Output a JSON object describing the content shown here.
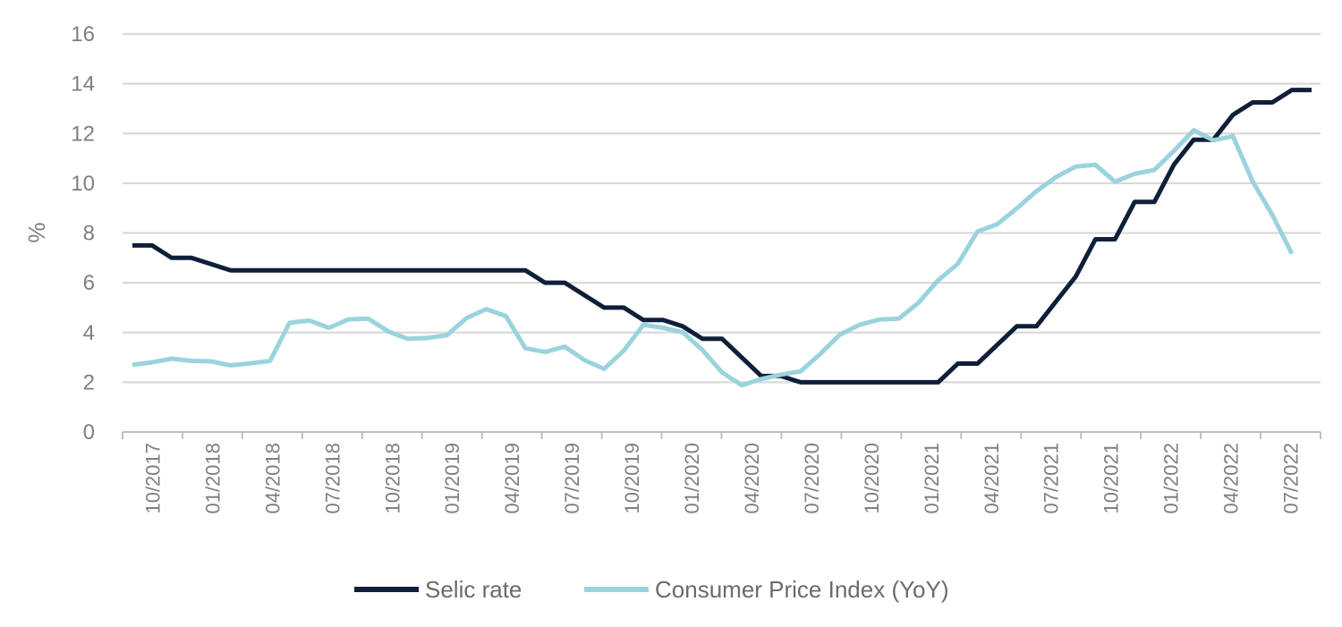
{
  "chart_data": {
    "type": "line",
    "title": "",
    "xlabel": "",
    "ylabel": "%",
    "ylim": [
      0,
      16
    ],
    "yticks": [
      "0",
      "2",
      "4",
      "6",
      "8",
      "10",
      "12",
      "14",
      "16"
    ],
    "grid": true,
    "legend_position": "bottom",
    "x": [
      "10/2017",
      "11/2017",
      "12/2017",
      "01/2018",
      "02/2018",
      "03/2018",
      "04/2018",
      "05/2018",
      "06/2018",
      "07/2018",
      "08/2018",
      "09/2018",
      "10/2018",
      "11/2018",
      "12/2018",
      "01/2019",
      "02/2019",
      "03/2019",
      "04/2019",
      "05/2019",
      "06/2019",
      "07/2019",
      "08/2019",
      "09/2019",
      "10/2019",
      "11/2019",
      "12/2019",
      "01/2020",
      "02/2020",
      "03/2020",
      "04/2020",
      "05/2020",
      "06/2020",
      "07/2020",
      "08/2020",
      "09/2020",
      "10/2020",
      "11/2020",
      "12/2020",
      "01/2021",
      "02/2021",
      "03/2021",
      "04/2021",
      "05/2021",
      "06/2021",
      "07/2021",
      "08/2021",
      "09/2021",
      "10/2021",
      "11/2021",
      "12/2021",
      "01/2022",
      "02/2022",
      "03/2022",
      "04/2022",
      "05/2022",
      "06/2022",
      "07/2022",
      "08/2022",
      "09/2022",
      "10/2022"
    ],
    "x_tick_labels": [
      "10/2017",
      "01/2018",
      "04/2018",
      "07/2018",
      "10/2018",
      "01/2019",
      "04/2019",
      "07/2019",
      "10/2019",
      "01/2020",
      "04/2020",
      "07/2020",
      "10/2020",
      "01/2021",
      "04/2021",
      "07/2021",
      "10/2021",
      "01/2022",
      "04/2022",
      "07/2022"
    ],
    "series": [
      {
        "name": "Selic rate",
        "color": "#0f1f3a",
        "values": [
          7.5,
          7.5,
          7.0,
          7.0,
          6.75,
          6.5,
          6.5,
          6.5,
          6.5,
          6.5,
          6.5,
          6.5,
          6.5,
          6.5,
          6.5,
          6.5,
          6.5,
          6.5,
          6.5,
          6.5,
          6.5,
          6.0,
          6.0,
          5.5,
          5.0,
          5.0,
          4.5,
          4.5,
          4.25,
          3.75,
          3.75,
          3.0,
          2.25,
          2.25,
          2.0,
          2.0,
          2.0,
          2.0,
          2.0,
          2.0,
          2.0,
          2.0,
          2.75,
          2.75,
          3.5,
          4.25,
          4.25,
          5.25,
          6.25,
          7.75,
          7.75,
          9.25,
          9.25,
          10.75,
          11.75,
          11.75,
          12.75,
          13.25,
          13.25,
          13.75,
          13.75
        ]
      },
      {
        "name": "Consumer Price Index (YoY)",
        "color": "#9ad3de",
        "values": [
          2.7,
          2.8,
          2.95,
          2.86,
          2.84,
          2.68,
          2.76,
          2.86,
          4.39,
          4.48,
          4.19,
          4.53,
          4.56,
          4.05,
          3.75,
          3.78,
          3.89,
          4.58,
          4.94,
          4.66,
          3.37,
          3.22,
          3.43,
          2.89,
          2.54,
          3.27,
          4.31,
          4.19,
          4.01,
          3.3,
          2.4,
          1.88,
          2.13,
          2.31,
          2.44,
          3.14,
          3.92,
          4.31,
          4.52,
          4.56,
          5.2,
          6.1,
          6.76,
          8.06,
          8.35,
          8.99,
          9.68,
          10.25,
          10.67,
          10.74,
          10.06,
          10.38,
          10.54,
          11.3,
          12.13,
          11.73,
          11.89,
          10.07,
          8.73,
          7.17,
          null
        ]
      }
    ]
  }
}
